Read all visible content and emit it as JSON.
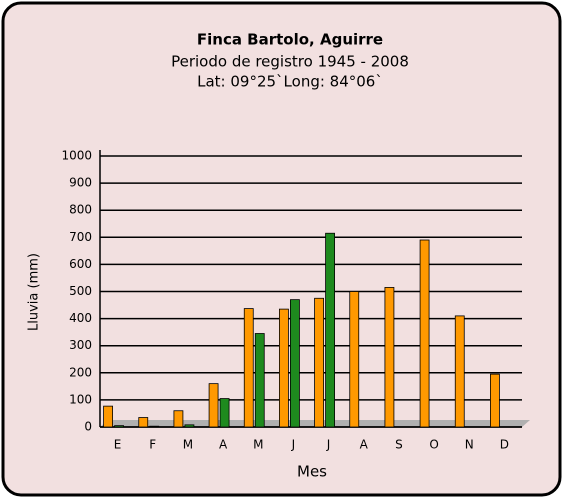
{
  "chart_data": {
    "type": "bar",
    "title": "Finca Bartolo, Aguirre",
    "subtitle": "Periodo de registro 1945 - 2008",
    "location": "Lat: 09°25`Long: 84°06`",
    "x_label": "Mes",
    "y_label": "Lluvia (mm)",
    "categories": [
      "E",
      "F",
      "M",
      "A",
      "M",
      "J",
      "J",
      "A",
      "S",
      "O",
      "N",
      "D"
    ],
    "series": [
      {
        "color": "#ff9900",
        "values": [
          77,
          35,
          60,
          160,
          437,
          435,
          475,
          500,
          515,
          690,
          410,
          195
        ]
      },
      {
        "color": "#1e8a1e",
        "values": [
          5,
          3,
          8,
          105,
          345,
          470,
          715,
          null,
          null,
          null,
          null,
          null
        ]
      }
    ],
    "ylim": [
      0,
      1000
    ],
    "yticks": [
      0,
      100,
      200,
      300,
      400,
      500,
      600,
      700,
      800,
      900,
      1000
    ],
    "grid": true
  }
}
